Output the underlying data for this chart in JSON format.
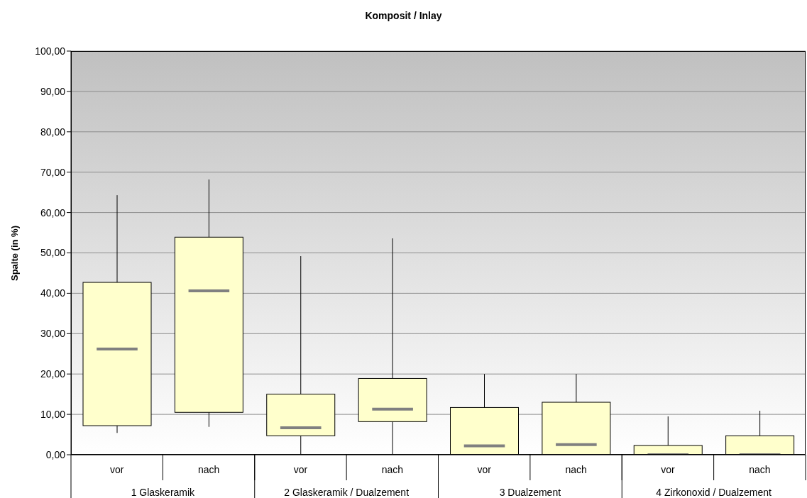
{
  "chart_data": {
    "type": "box",
    "title": "Komposit / Inlay",
    "ylabel": "Spalte (in %)",
    "categories": [
      "vor",
      "nach",
      "vor",
      "nach",
      "vor",
      "nach",
      "vor",
      "nach"
    ],
    "annotations": [
      "1 Glaskeramik",
      "2 Glaskeramik / Dualzement",
      "3 Dualzement",
      "4 Zirkonoxid / Dualzement"
    ],
    "color": "#ffffcc",
    "boxes": [
      {
        "low": 5.4,
        "q1": 7.2,
        "median": 26.2,
        "q3": 42.7,
        "high": 64.3
      },
      {
        "low": 6.9,
        "q1": 10.5,
        "median": 40.6,
        "q3": 53.9,
        "high": 68.2
      },
      {
        "low": 0,
        "q1": 4.7,
        "median": 6.7,
        "q3": 15.0,
        "high": 49.2
      },
      {
        "low": 0,
        "q1": 8.2,
        "median": 11.3,
        "q3": 18.9,
        "high": 53.6
      },
      {
        "low": 0,
        "q1": 0,
        "median": 2.2,
        "q3": 11.7,
        "high": 20
      },
      {
        "low": 0,
        "q1": 0,
        "median": 2.5,
        "q3": 13.0,
        "high": 20
      },
      {
        "low": 0,
        "q1": 0,
        "median": 0,
        "q3": 2.3,
        "high": 9.5
      },
      {
        "low": 0,
        "q1": 0,
        "median": 0,
        "q3": 4.7,
        "high": 10.9
      }
    ],
    "ylim": [
      0,
      100
    ],
    "yticks": [
      {
        "value": 0,
        "label": "0,00"
      },
      {
        "value": 10,
        "label": "10,00"
      },
      {
        "value": 20,
        "label": "20,00"
      },
      {
        "value": 30,
        "label": "30,00"
      },
      {
        "value": 40,
        "label": "40,00"
      },
      {
        "value": 50,
        "label": "50,00"
      },
      {
        "value": 60,
        "label": "60,00"
      },
      {
        "value": 70,
        "label": "70,00"
      },
      {
        "value": 80,
        "label": "80,00"
      },
      {
        "value": 90,
        "label": "90,00"
      },
      {
        "value": 100,
        "label": "100,00"
      }
    ],
    "grid": "y"
  }
}
